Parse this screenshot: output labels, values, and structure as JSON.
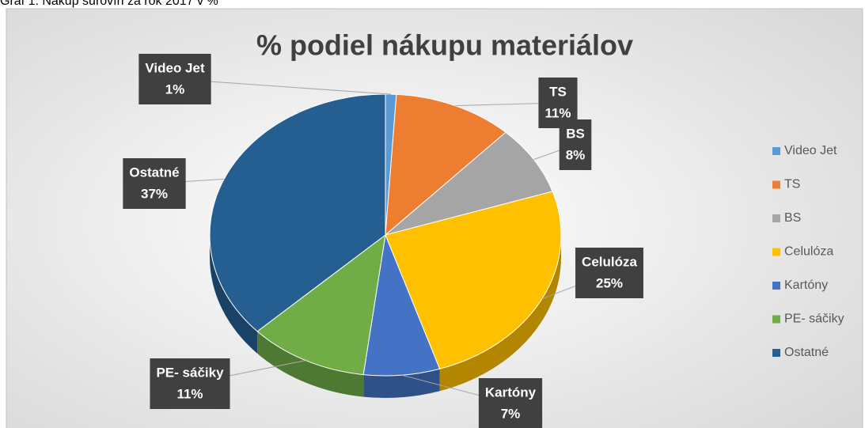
{
  "caption": "Graf 1: Nákup surovín za rok 2017 v %",
  "chart_data": {
    "type": "pie3d",
    "title": "% podiel nákupu materiálov",
    "categories": [
      "Video Jet",
      "TS",
      "BS",
      "Celulóza",
      "Kartóny",
      "PE- sáčiky",
      "Ostatné"
    ],
    "values": [
      1,
      11,
      8,
      25,
      7,
      11,
      37
    ],
    "value_labels": [
      "1%",
      "11%",
      "8%",
      "25%",
      "7%",
      "11%",
      "37%"
    ],
    "colors": [
      "#5b9bd5",
      "#ed7d31",
      "#a5a5a5",
      "#ffc000",
      "#4472c4",
      "#70ad47",
      "#255e91"
    ],
    "legend": "right"
  }
}
